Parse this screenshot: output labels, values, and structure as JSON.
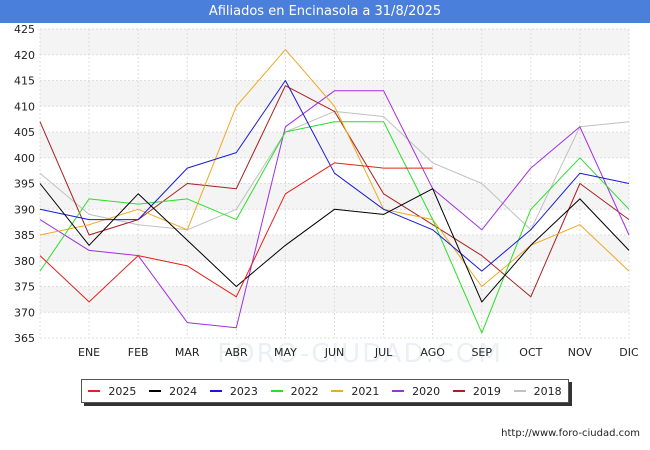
{
  "header": {
    "title": "Afiliados en Encinasola a 31/8/2025"
  },
  "footer": {
    "source": "http://www.foro-ciudad.com"
  },
  "watermark": "FORO-CIUDAD.COM",
  "chart_data": {
    "type": "line",
    "title": "Afiliados en Encinasola a 31/8/2025",
    "xlabel": "",
    "ylabel": "",
    "ylim": [
      365,
      425
    ],
    "ytick_step": 5,
    "grid": true,
    "legend_position": "bottom",
    "x": [
      "DIC_prev",
      "ENE",
      "FEB",
      "MAR",
      "ABR",
      "MAY",
      "JUN",
      "JUL",
      "AGO",
      "SEP",
      "OCT",
      "NOV",
      "DIC"
    ],
    "x_tick_labels": [
      "",
      "ENE",
      "FEB",
      "MAR",
      "ABR",
      "MAY",
      "JUN",
      "JUL",
      "AGO",
      "SEP",
      "OCT",
      "NOV",
      "DIC"
    ],
    "series": [
      {
        "name": "2025",
        "color": "#e8201c",
        "values": [
          381,
          372,
          381,
          379,
          373,
          393,
          399,
          398,
          398,
          null,
          null,
          null,
          null
        ]
      },
      {
        "name": "2024",
        "color": "#000000",
        "values": [
          395,
          383,
          393,
          384,
          375,
          383,
          390,
          389,
          394,
          372,
          383,
          392,
          382
        ]
      },
      {
        "name": "2023",
        "color": "#1a1ad6",
        "values": [
          390,
          388,
          388,
          398,
          401,
          415,
          397,
          390,
          386,
          378,
          386,
          397,
          395
        ]
      },
      {
        "name": "2022",
        "color": "#28e028",
        "values": [
          378,
          392,
          391,
          392,
          388,
          405,
          407,
          407,
          388,
          366,
          390,
          400,
          390
        ]
      },
      {
        "name": "2021",
        "color": "#f0a820",
        "values": [
          385,
          387,
          390,
          386,
          410,
          421,
          410,
          390,
          388,
          375,
          383,
          387,
          378
        ]
      },
      {
        "name": "2020",
        "color": "#a030e0",
        "values": [
          388,
          382,
          381,
          368,
          367,
          406,
          413,
          413,
          394,
          386,
          398,
          406,
          385
        ]
      },
      {
        "name": "2019",
        "color": "#a82020",
        "values": [
          407,
          385,
          388,
          395,
          394,
          414,
          409,
          393,
          387,
          381,
          373,
          395,
          388
        ]
      },
      {
        "name": "2018",
        "color": "#c0c0c0",
        "values": [
          397,
          389,
          387,
          386,
          390,
          405,
          409,
          408,
          399,
          395,
          386,
          406,
          407
        ]
      }
    ]
  }
}
